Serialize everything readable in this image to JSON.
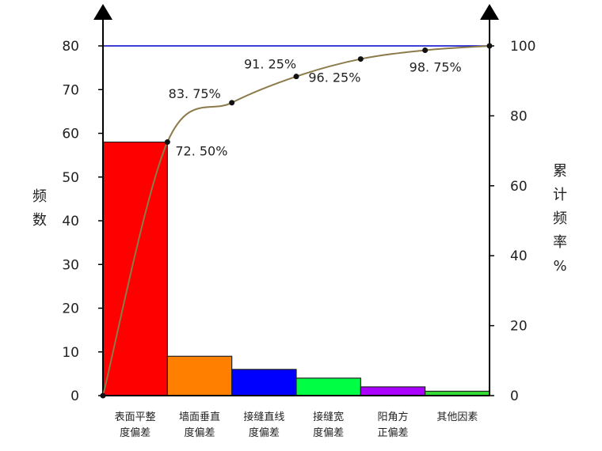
{
  "chart_data": {
    "type": "bar",
    "categories": [
      [
        "表面平整",
        "度偏差"
      ],
      [
        "墙面垂直",
        "度偏差"
      ],
      [
        "接缝直线",
        "度偏差"
      ],
      [
        "接缝宽",
        "度偏差"
      ],
      [
        "阳角方",
        "正偏差"
      ],
      [
        "其他因素"
      ]
    ],
    "values": [
      58,
      9,
      6,
      4,
      2,
      1
    ],
    "colors": [
      "#ff0000",
      "#ff7f00",
      "#0000ff",
      "#00ff44",
      "#aa00ff",
      "#33dd33"
    ],
    "ylabel_left": [
      "频",
      "数"
    ],
    "ylabel_right": [
      "累",
      "计",
      "频",
      "率",
      "%"
    ],
    "yticks_left": [
      "0",
      "10",
      "20",
      "30",
      "40",
      "50",
      "60",
      "70",
      "80"
    ],
    "yticks_right": [
      "0",
      "20",
      "40",
      "60",
      "80",
      "100"
    ],
    "ylim_left": [
      0,
      80
    ],
    "ylim_right": [
      0,
      100
    ],
    "cumulative": {
      "values": [
        0,
        72.5,
        83.75,
        91.25,
        96.25,
        98.75,
        100
      ],
      "labels": [
        "",
        "72. 50%",
        "83. 75%",
        "91. 25%",
        "96. 25%",
        "98. 75%",
        ""
      ],
      "color": "#8b7a4a"
    },
    "reference_line": {
      "value": 80,
      "color": "#0000cc"
    },
    "grid": false
  }
}
